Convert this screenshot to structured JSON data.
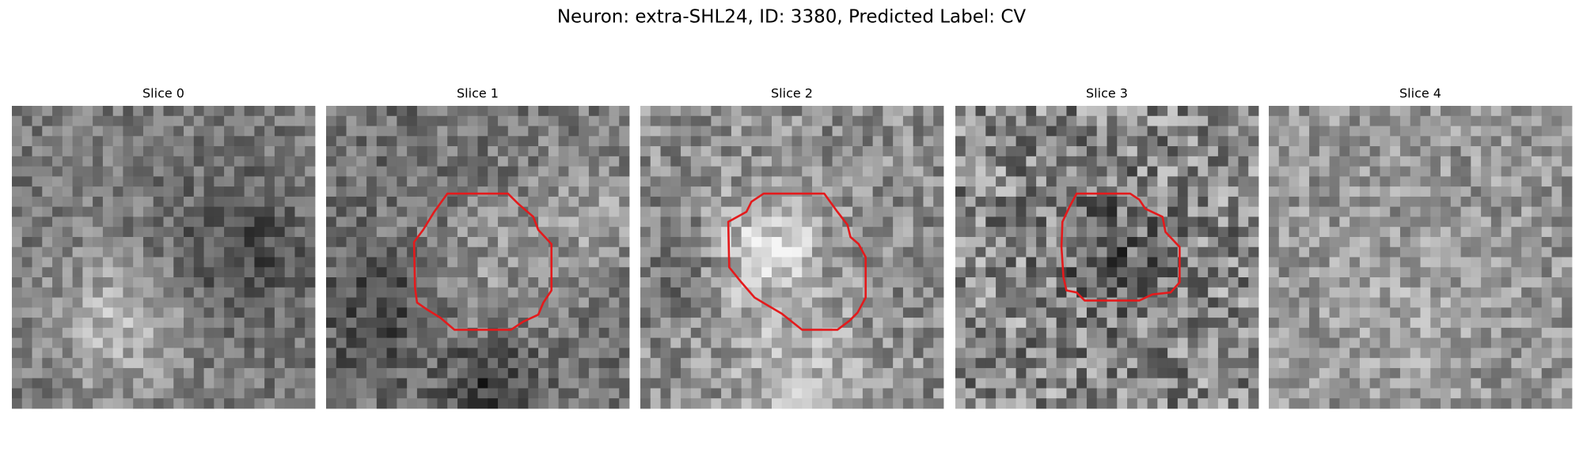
{
  "title": "Neuron: extra-SHL24, ID: 3380, Predicted Label: CV",
  "panels": [
    {
      "title": "Slice 0"
    },
    {
      "title": "Slice 1"
    },
    {
      "title": "Slice 2"
    },
    {
      "title": "Slice 3"
    },
    {
      "title": "Slice 4"
    }
  ]
}
